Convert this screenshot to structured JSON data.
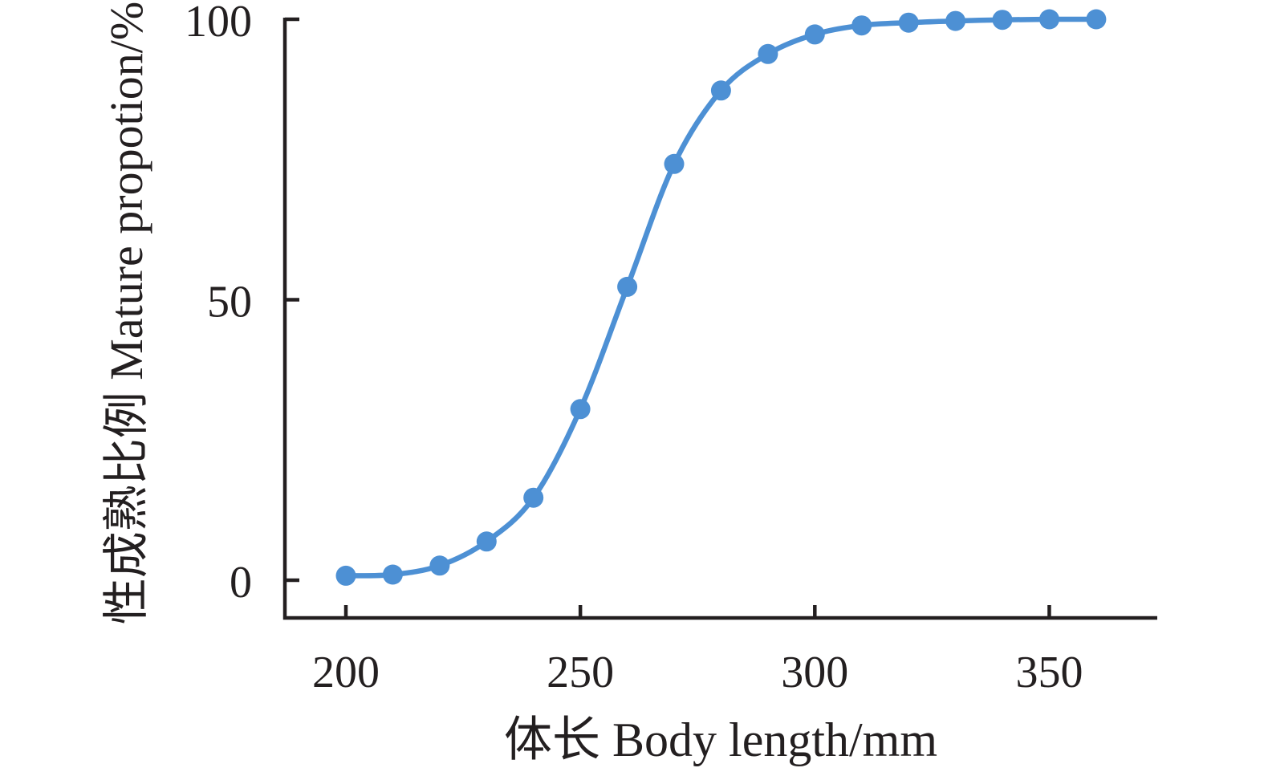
{
  "chart_data": {
    "type": "line",
    "title": "",
    "xlabel": "体长 Body length/mm",
    "ylabel": "性成熟比例 Mature propotion/%",
    "x": [
      200,
      210,
      220,
      230,
      240,
      250,
      260,
      270,
      280,
      290,
      300,
      310,
      320,
      330,
      340,
      350,
      360
    ],
    "series": [
      {
        "name": "mature-proportion",
        "values": [
          0.8,
          1.0,
          2.6,
          6.9,
          14.7,
          30.5,
          52.3,
          74.2,
          87.3,
          93.8,
          97.3,
          98.9,
          99.4,
          99.7,
          99.9,
          100,
          100
        ]
      }
    ],
    "xticks": [
      200,
      250,
      300,
      350
    ],
    "yticks": [
      0,
      50,
      100
    ],
    "xlim": [
      187,
      373
    ],
    "ylim": [
      -6.7,
      100.2
    ],
    "grid": false,
    "legend": false,
    "line_color": "#4D90D4",
    "marker_color": "#4D90D4",
    "axis_color": "#231F20",
    "text_color": "#231F20"
  }
}
